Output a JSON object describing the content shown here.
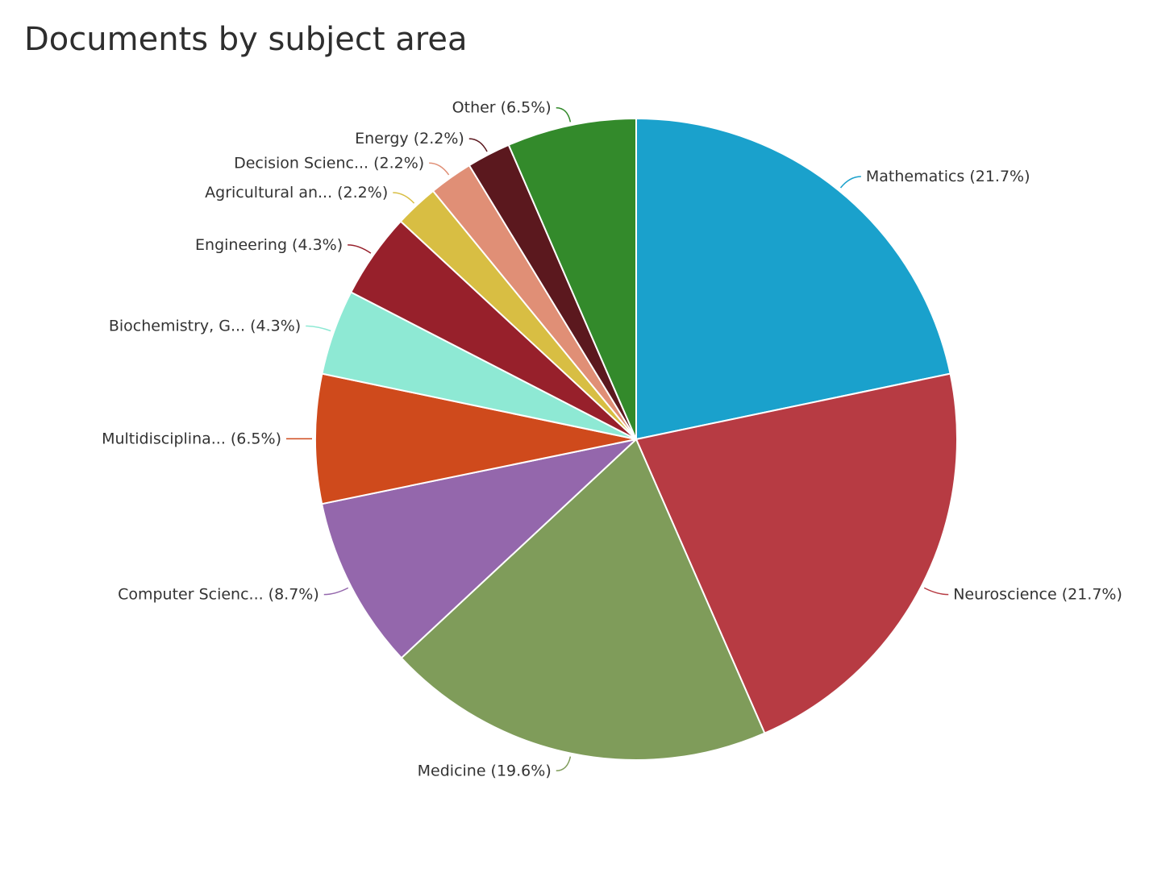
{
  "chart_data": {
    "type": "pie",
    "title": "Documents by subject area",
    "categories": [
      "Mathematics",
      "Neuroscience",
      "Medicine",
      "Computer Scienc...",
      "Multidisciplina...",
      "Biochemistry, G...",
      "Engineering",
      "Agricultural an...",
      "Decision Scienc...",
      "Energy",
      "Other"
    ],
    "values": [
      21.7,
      21.7,
      19.6,
      8.7,
      6.5,
      4.3,
      4.3,
      2.2,
      2.2,
      2.2,
      6.5
    ],
    "value_labels": [
      "(21.7%)",
      "(21.7%)",
      "(19.6%)",
      "(8.7%)",
      "(6.5%)",
      "(4.3%)",
      "(4.3%)",
      "(2.2%)",
      "(2.2%)",
      "(2.2%)",
      "(6.5%)"
    ],
    "colors": [
      "#1aa1cc",
      "#b73b43",
      "#7f9c5a",
      "#9467ac",
      "#cf4a1c",
      "#8ee9d4",
      "#97202b",
      "#d8be43",
      "#e08f76",
      "#5b181e",
      "#338a2b"
    ]
  }
}
